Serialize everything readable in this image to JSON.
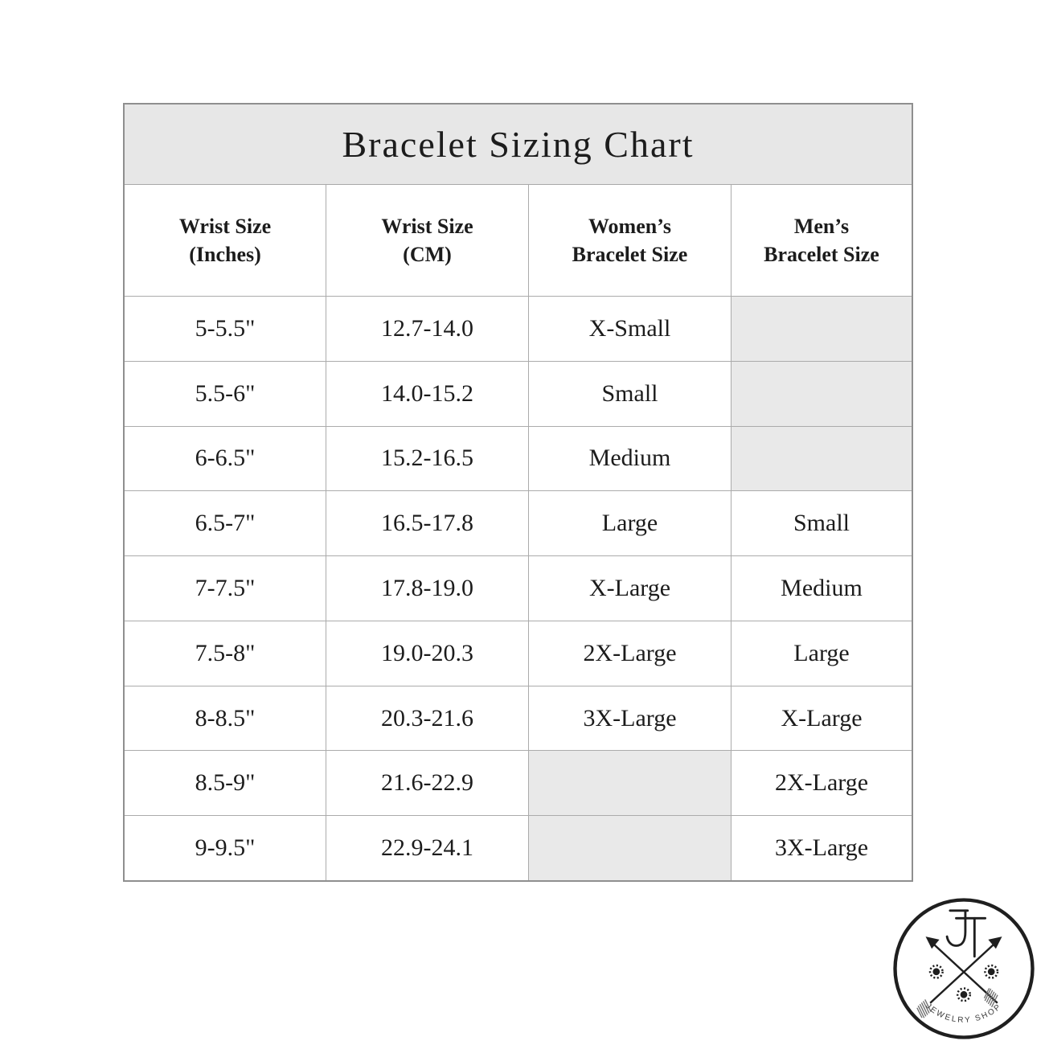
{
  "page": {
    "background": "#ffffff"
  },
  "chart_data": {
    "type": "table",
    "title": "Bracelet Sizing Chart",
    "columns": [
      "Wrist Size\n(Inches)",
      "Wrist Size\n(CM)",
      "Women’s\nBracelet Size",
      "Men’s\nBracelet Size"
    ],
    "rows": [
      [
        "5-5.5\"",
        "12.7-14.0",
        "X-Small",
        ""
      ],
      [
        "5.5-6\"",
        "14.0-15.2",
        "Small",
        ""
      ],
      [
        "6-6.5\"",
        "15.2-16.5",
        "Medium",
        ""
      ],
      [
        "6.5-7\"",
        "16.5-17.8",
        "Large",
        "Small"
      ],
      [
        "7-7.5\"",
        "17.8-19.0",
        "X-Large",
        "Medium"
      ],
      [
        "7.5-8\"",
        "19.0-20.3",
        "2X-Large",
        "Large"
      ],
      [
        "8-8.5\"",
        "20.3-21.6",
        "3X-Large",
        "X-Large"
      ],
      [
        "8.5-9\"",
        "21.6-22.9",
        "",
        "2X-Large"
      ],
      [
        "9-9.5\"",
        "22.9-24.1",
        "",
        "3X-Large"
      ]
    ]
  },
  "logo": {
    "monogram": "JT",
    "caption": "JEWELRY SHOP"
  },
  "colors": {
    "title_band": "#e7e7e7",
    "empty_cell": "#e9e9e9",
    "grid_border": "#ababab",
    "outer_border": "#8f8f8f",
    "text": "#1c1c1c",
    "logo_ink": "#1f1f1f"
  }
}
